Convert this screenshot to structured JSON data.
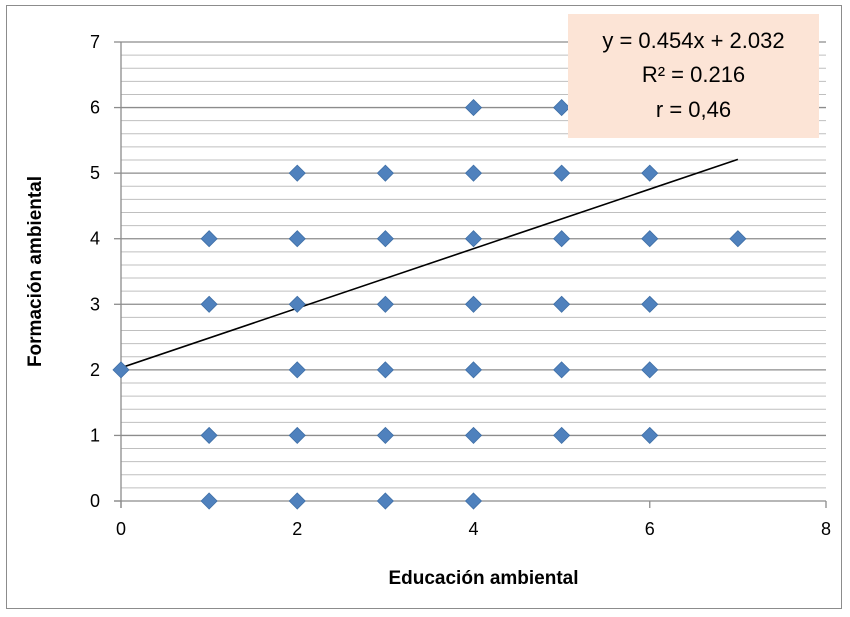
{
  "chart_data": {
    "type": "scatter",
    "xlabel": "Educación ambiental",
    "ylabel": "Formación ambiental",
    "xlim": [
      0,
      8
    ],
    "ylim": [
      0,
      7
    ],
    "x_ticks": [
      0,
      2,
      4,
      6,
      8
    ],
    "y_ticks": [
      0,
      1,
      2,
      3,
      4,
      5,
      6,
      7
    ],
    "grid": true,
    "minor_grid": true,
    "marker": "diamond",
    "marker_color": "#4f81bd",
    "points": [
      {
        "x": 0,
        "y": 2
      },
      {
        "x": 1,
        "y": 0
      },
      {
        "x": 1,
        "y": 1
      },
      {
        "x": 1,
        "y": 3
      },
      {
        "x": 1,
        "y": 4
      },
      {
        "x": 2,
        "y": 0
      },
      {
        "x": 2,
        "y": 1
      },
      {
        "x": 2,
        "y": 2
      },
      {
        "x": 2,
        "y": 3
      },
      {
        "x": 2,
        "y": 4
      },
      {
        "x": 2,
        "y": 5
      },
      {
        "x": 3,
        "y": 0
      },
      {
        "x": 3,
        "y": 1
      },
      {
        "x": 3,
        "y": 2
      },
      {
        "x": 3,
        "y": 3
      },
      {
        "x": 3,
        "y": 4
      },
      {
        "x": 3,
        "y": 5
      },
      {
        "x": 4,
        "y": 0
      },
      {
        "x": 4,
        "y": 1
      },
      {
        "x": 4,
        "y": 2
      },
      {
        "x": 4,
        "y": 3
      },
      {
        "x": 4,
        "y": 4
      },
      {
        "x": 4,
        "y": 5
      },
      {
        "x": 4,
        "y": 6
      },
      {
        "x": 5,
        "y": 1
      },
      {
        "x": 5,
        "y": 2
      },
      {
        "x": 5,
        "y": 3
      },
      {
        "x": 5,
        "y": 4
      },
      {
        "x": 5,
        "y": 5
      },
      {
        "x": 5,
        "y": 6
      },
      {
        "x": 6,
        "y": 1
      },
      {
        "x": 6,
        "y": 2
      },
      {
        "x": 6,
        "y": 3
      },
      {
        "x": 6,
        "y": 4
      },
      {
        "x": 6,
        "y": 5
      },
      {
        "x": 7,
        "y": 4
      }
    ],
    "trendline": {
      "slope": 0.454,
      "intercept": 2.032,
      "x_range": [
        0,
        7
      ],
      "color": "#000000"
    },
    "annotation": {
      "lines": [
        "y = 0.454x + 2.032",
        "R² = 0.216",
        "r = 0,46"
      ],
      "background": "#fce4d6",
      "placement": "top-right"
    }
  }
}
